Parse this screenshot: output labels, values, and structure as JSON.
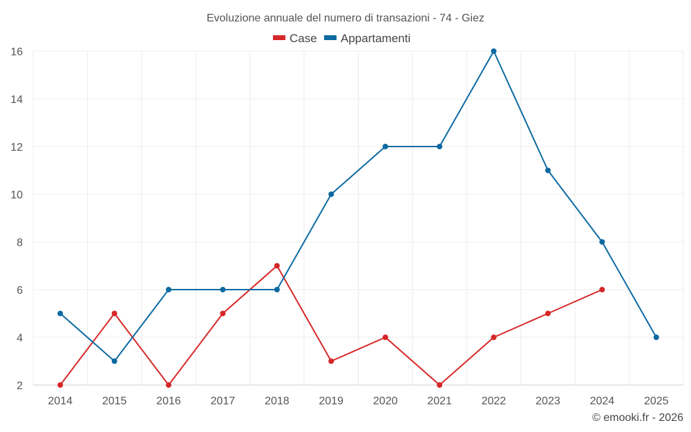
{
  "chart_data": {
    "type": "line",
    "title": "Evoluzione annuale del numero di transazioni - 74 - Giez",
    "x": [
      "2014",
      "2015",
      "2016",
      "2017",
      "2018",
      "2019",
      "2020",
      "2021",
      "2022",
      "2023",
      "2024",
      "2025"
    ],
    "series": [
      {
        "name": "Case",
        "color": "#d62728",
        "values": [
          2,
          5,
          2,
          5,
          7,
          3,
          4,
          2,
          4,
          5,
          6,
          null
        ]
      },
      {
        "name": "Appartamenti",
        "color": "#0b6aa2",
        "values": [
          5,
          3,
          6,
          6,
          6,
          10,
          12,
          12,
          16,
          11,
          8,
          4
        ]
      }
    ],
    "ylim": [
      2,
      16
    ],
    "yticks": [
      2,
      4,
      6,
      8,
      10,
      12,
      14,
      16
    ],
    "grid": true,
    "legend": "top-center",
    "xlabel": "",
    "ylabel": ""
  },
  "credit": "© emooki.fr - 2026"
}
